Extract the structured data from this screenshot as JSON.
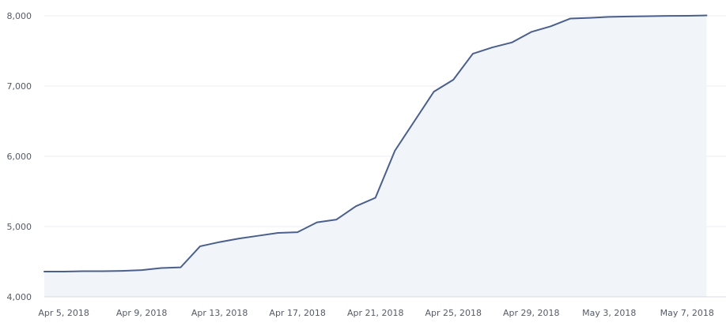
{
  "chart_data": {
    "type": "area",
    "title": "",
    "xlabel": "",
    "ylabel": "",
    "ylim": [
      4000,
      8000
    ],
    "y_ticks": [
      {
        "value": 4000,
        "label": "4,000"
      },
      {
        "value": 5000,
        "label": "5,000"
      },
      {
        "value": 6000,
        "label": "6,000"
      },
      {
        "value": 7000,
        "label": "7,000"
      },
      {
        "value": 8000,
        "label": "8,000"
      }
    ],
    "x_ticks": [
      {
        "date": "2018-04-05",
        "label": "Apr 5, 2018"
      },
      {
        "date": "2018-04-09",
        "label": "Apr 9, 2018"
      },
      {
        "date": "2018-04-13",
        "label": "Apr 13, 2018"
      },
      {
        "date": "2018-04-17",
        "label": "Apr 17, 2018"
      },
      {
        "date": "2018-04-21",
        "label": "Apr 21, 2018"
      },
      {
        "date": "2018-04-25",
        "label": "Apr 25, 2018"
      },
      {
        "date": "2018-04-29",
        "label": "Apr 29, 2018"
      },
      {
        "date": "2018-05-03",
        "label": "May 3, 2018"
      },
      {
        "date": "2018-05-07",
        "label": "May 7, 2018"
      }
    ],
    "grid": true,
    "legend": "none",
    "series": [
      {
        "color": "#4a5f8c",
        "fill_color": "#f1f4f9",
        "points": [
          {
            "x": "2018-04-04",
            "y": 4360
          },
          {
            "x": "2018-04-05",
            "y": 4360
          },
          {
            "x": "2018-04-06",
            "y": 4365
          },
          {
            "x": "2018-04-07",
            "y": 4365
          },
          {
            "x": "2018-04-08",
            "y": 4370
          },
          {
            "x": "2018-04-09",
            "y": 4380
          },
          {
            "x": "2018-04-10",
            "y": 4410
          },
          {
            "x": "2018-04-11",
            "y": 4420
          },
          {
            "x": "2018-04-12",
            "y": 4720
          },
          {
            "x": "2018-04-13",
            "y": 4780
          },
          {
            "x": "2018-04-14",
            "y": 4830
          },
          {
            "x": "2018-04-15",
            "y": 4870
          },
          {
            "x": "2018-04-16",
            "y": 4910
          },
          {
            "x": "2018-04-17",
            "y": 4920
          },
          {
            "x": "2018-04-18",
            "y": 5060
          },
          {
            "x": "2018-04-19",
            "y": 5100
          },
          {
            "x": "2018-04-20",
            "y": 5290
          },
          {
            "x": "2018-04-21",
            "y": 5410
          },
          {
            "x": "2018-04-22",
            "y": 6080
          },
          {
            "x": "2018-04-23",
            "y": 6500
          },
          {
            "x": "2018-04-24",
            "y": 6920
          },
          {
            "x": "2018-04-25",
            "y": 7090
          },
          {
            "x": "2018-04-26",
            "y": 7460
          },
          {
            "x": "2018-04-27",
            "y": 7550
          },
          {
            "x": "2018-04-28",
            "y": 7620
          },
          {
            "x": "2018-04-29",
            "y": 7770
          },
          {
            "x": "2018-04-30",
            "y": 7850
          },
          {
            "x": "2018-05-01",
            "y": 7960
          },
          {
            "x": "2018-05-02",
            "y": 7970
          },
          {
            "x": "2018-05-03",
            "y": 7985
          },
          {
            "x": "2018-05-04",
            "y": 7990
          },
          {
            "x": "2018-05-05",
            "y": 7995
          },
          {
            "x": "2018-05-06",
            "y": 7998
          },
          {
            "x": "2018-05-07",
            "y": 8000
          },
          {
            "x": "2018-05-08",
            "y": 8005
          }
        ]
      }
    ]
  }
}
